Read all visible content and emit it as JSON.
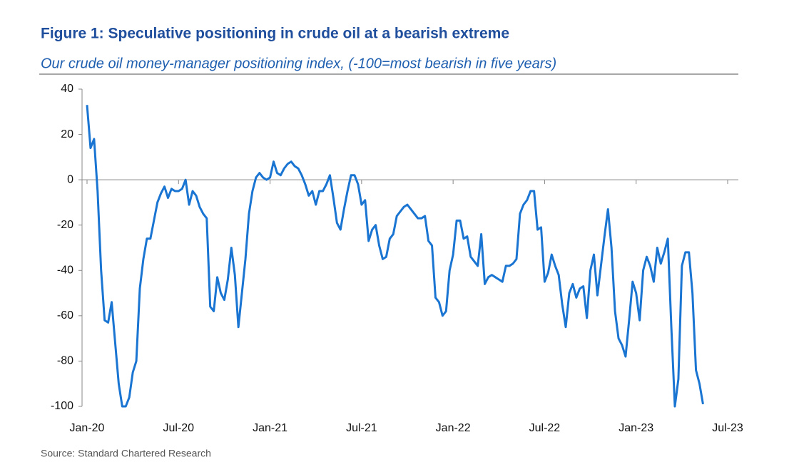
{
  "chart_data": {
    "type": "line",
    "title": "Figure 1: Speculative positioning in crude oil at a bearish extreme",
    "subtitle": "Our crude oil money-manager positioning index, (-100=most bearish in five years)",
    "source": "Source: Standard Chartered Research",
    "categories": [
      "Jan-20",
      null,
      null,
      null,
      null,
      null,
      null,
      null,
      null,
      null,
      null,
      null,
      null,
      null,
      null,
      null,
      null,
      null,
      null,
      null,
      null,
      null,
      null,
      null,
      null,
      null,
      "Jul-20",
      null,
      null,
      null,
      null,
      null,
      null,
      null,
      null,
      null,
      null,
      null,
      null,
      null,
      null,
      null,
      null,
      null,
      null,
      null,
      null,
      null,
      null,
      null,
      null,
      null,
      "Jan-21",
      null,
      null,
      null,
      null,
      null,
      null,
      null,
      null,
      null,
      null,
      null,
      null,
      null,
      null,
      null,
      null,
      null,
      null,
      null,
      null,
      null,
      null,
      null,
      null,
      null,
      "Jul-21",
      null,
      null,
      null,
      null,
      null,
      null,
      null,
      null,
      null,
      null,
      null,
      null,
      null,
      null,
      null,
      null,
      null,
      null,
      null,
      null,
      null,
      null,
      null,
      null,
      null,
      "Jan-22",
      null,
      null,
      null,
      null,
      null,
      null,
      null,
      null,
      null,
      null,
      null,
      null,
      null,
      null,
      null,
      null,
      null,
      null,
      null,
      null,
      null,
      null,
      null,
      null,
      null,
      "Jul-22",
      null,
      null,
      null,
      null,
      null,
      null,
      null,
      null,
      null,
      null,
      null,
      null,
      null,
      null,
      null,
      null,
      null,
      null,
      null,
      null,
      null,
      null,
      null,
      null,
      null,
      "Jan-23",
      null,
      null,
      null,
      null,
      null,
      null,
      null,
      null,
      null,
      null,
      null,
      null,
      null,
      null,
      null,
      null,
      null,
      null,
      null,
      null,
      null,
      null,
      null,
      null,
      null,
      "Jul-23"
    ],
    "series": [
      {
        "name": "Positioning index",
        "color": "#1a75d2",
        "values": [
          33,
          14,
          18,
          -5,
          -40,
          -62,
          -63,
          -54,
          -72,
          -90,
          -100,
          -100,
          -96,
          -85,
          -80,
          -48,
          -35,
          -26,
          -26,
          -18,
          -10,
          -6,
          -3,
          -8,
          -4,
          -5,
          -5,
          -4,
          0,
          -11,
          -5,
          -7,
          -12,
          -15,
          -17,
          -56,
          -58,
          -43,
          -50,
          -53,
          -44,
          -30,
          -42,
          -65,
          -50,
          -35,
          -15,
          -5,
          1,
          3,
          1,
          0,
          1,
          8,
          3,
          2,
          5,
          7,
          8,
          6,
          5,
          2,
          -2,
          -7,
          -5,
          -11,
          -5,
          -5,
          -2,
          2,
          -8,
          -19,
          -22,
          -13,
          -5,
          2,
          2,
          -2,
          -11,
          -9,
          -27,
          -22,
          -20,
          -29,
          -35,
          -34,
          -26,
          -24,
          -16,
          -14,
          -12,
          -11,
          -13,
          -15,
          -17,
          -17,
          -16,
          -27,
          -29,
          -52,
          -54,
          -60,
          -58,
          -40,
          -33,
          -18,
          -18,
          -26,
          -25,
          -34,
          -36,
          -38,
          -24,
          -46,
          -43,
          -42,
          -43,
          -44,
          -45,
          -38,
          -38,
          -37,
          -35,
          -15,
          -11,
          -9,
          -5,
          -5,
          -22,
          -21,
          -45,
          -41,
          -33,
          -38,
          -42,
          -55,
          -65,
          -50,
          -46,
          -52,
          -48,
          -47,
          -61,
          -40,
          -33,
          -51,
          -38,
          -25,
          -13,
          -30,
          -58,
          -70,
          -73,
          -78,
          -62,
          -45,
          -50,
          -62,
          -40,
          -34,
          -38,
          -45,
          -30,
          -37,
          -32,
          -26,
          -65,
          -100,
          -88,
          -38,
          -32,
          -32,
          -50,
          -84,
          -90,
          -99,
          null,
          null,
          null,
          null,
          null,
          null,
          null
        ]
      }
    ],
    "ylim": [
      -100,
      40
    ],
    "yticks": [
      40,
      20,
      0,
      -20,
      -40,
      -60,
      -80,
      -100
    ],
    "grid": false
  }
}
